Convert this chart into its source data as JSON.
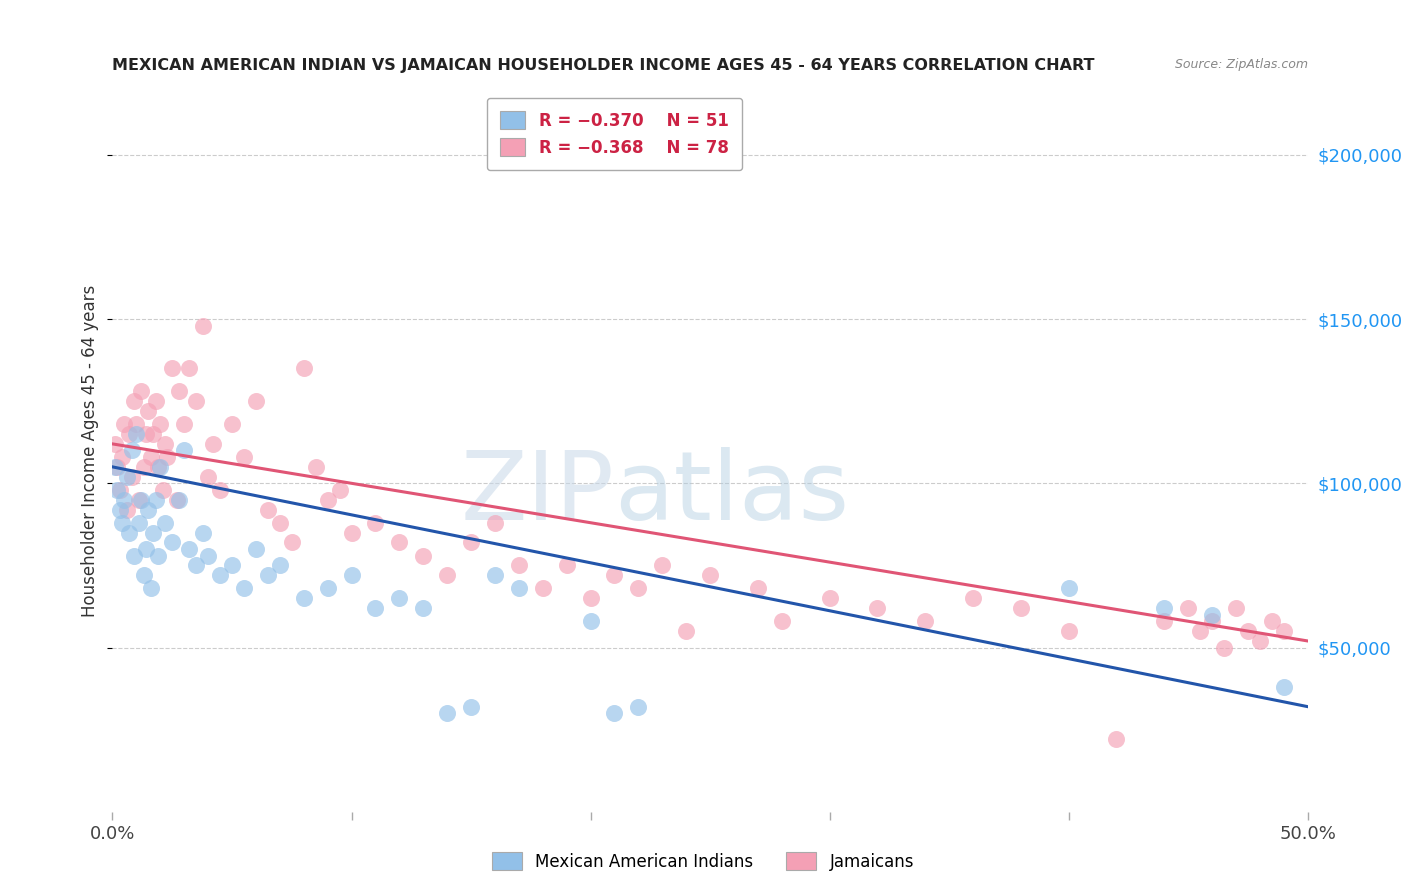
{
  "title": "MEXICAN AMERICAN INDIAN VS JAMAICAN HOUSEHOLDER INCOME AGES 45 - 64 YEARS CORRELATION CHART",
  "source": "Source: ZipAtlas.com",
  "ylabel": "Householder Income Ages 45 - 64 years",
  "xlim": [
    0.0,
    0.5
  ],
  "ylim": [
    0,
    220000
  ],
  "ytick_values": [
    50000,
    100000,
    150000,
    200000
  ],
  "ytick_labels": [
    "$50,000",
    "$100,000",
    "$150,000",
    "$200,000"
  ],
  "blue_color": "#92c0e8",
  "pink_color": "#f4a0b5",
  "blue_line_color": "#2255aa",
  "pink_line_color": "#e05575",
  "blue_x": [
    0.001,
    0.002,
    0.003,
    0.004,
    0.005,
    0.006,
    0.007,
    0.008,
    0.009,
    0.01,
    0.011,
    0.012,
    0.013,
    0.014,
    0.015,
    0.016,
    0.017,
    0.018,
    0.019,
    0.02,
    0.022,
    0.025,
    0.028,
    0.03,
    0.032,
    0.035,
    0.038,
    0.04,
    0.045,
    0.05,
    0.055,
    0.06,
    0.065,
    0.07,
    0.08,
    0.09,
    0.1,
    0.11,
    0.12,
    0.13,
    0.14,
    0.15,
    0.16,
    0.17,
    0.2,
    0.21,
    0.22,
    0.4,
    0.44,
    0.46,
    0.49
  ],
  "blue_y": [
    105000,
    98000,
    92000,
    88000,
    95000,
    102000,
    85000,
    110000,
    78000,
    115000,
    88000,
    95000,
    72000,
    80000,
    92000,
    68000,
    85000,
    95000,
    78000,
    105000,
    88000,
    82000,
    95000,
    110000,
    80000,
    75000,
    85000,
    78000,
    72000,
    75000,
    68000,
    80000,
    72000,
    75000,
    65000,
    68000,
    72000,
    62000,
    65000,
    62000,
    30000,
    32000,
    72000,
    68000,
    58000,
    30000,
    32000,
    68000,
    62000,
    60000,
    38000
  ],
  "pink_x": [
    0.001,
    0.002,
    0.003,
    0.004,
    0.005,
    0.006,
    0.007,
    0.008,
    0.009,
    0.01,
    0.011,
    0.012,
    0.013,
    0.014,
    0.015,
    0.016,
    0.017,
    0.018,
    0.019,
    0.02,
    0.021,
    0.022,
    0.023,
    0.025,
    0.027,
    0.028,
    0.03,
    0.032,
    0.035,
    0.038,
    0.04,
    0.042,
    0.045,
    0.05,
    0.055,
    0.06,
    0.065,
    0.07,
    0.075,
    0.08,
    0.085,
    0.09,
    0.095,
    0.1,
    0.11,
    0.12,
    0.13,
    0.14,
    0.15,
    0.16,
    0.17,
    0.18,
    0.19,
    0.2,
    0.21,
    0.22,
    0.23,
    0.24,
    0.25,
    0.27,
    0.28,
    0.3,
    0.32,
    0.34,
    0.36,
    0.38,
    0.4,
    0.42,
    0.44,
    0.45,
    0.455,
    0.46,
    0.465,
    0.47,
    0.475,
    0.48,
    0.485,
    0.49
  ],
  "pink_y": [
    112000,
    105000,
    98000,
    108000,
    118000,
    92000,
    115000,
    102000,
    125000,
    118000,
    95000,
    128000,
    105000,
    115000,
    122000,
    108000,
    115000,
    125000,
    105000,
    118000,
    98000,
    112000,
    108000,
    135000,
    95000,
    128000,
    118000,
    135000,
    125000,
    148000,
    102000,
    112000,
    98000,
    118000,
    108000,
    125000,
    92000,
    88000,
    82000,
    135000,
    105000,
    95000,
    98000,
    85000,
    88000,
    82000,
    78000,
    72000,
    82000,
    88000,
    75000,
    68000,
    75000,
    65000,
    72000,
    68000,
    75000,
    55000,
    72000,
    68000,
    58000,
    65000,
    62000,
    58000,
    65000,
    62000,
    55000,
    22000,
    58000,
    62000,
    55000,
    58000,
    50000,
    62000,
    55000,
    52000,
    58000,
    55000
  ]
}
